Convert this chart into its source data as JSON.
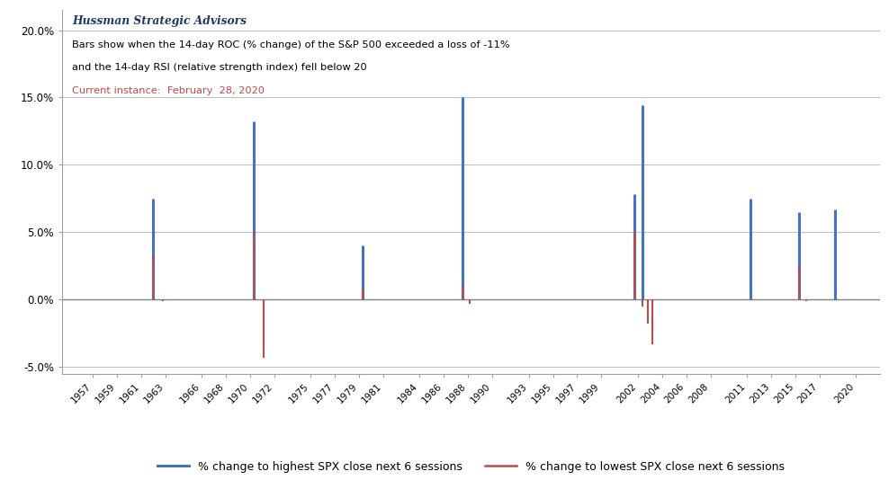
{
  "title_line1": "Hussman Strategic Advisors",
  "title_line2": "Bars show when the 14-day ROC (% change) of the S&P 500 exceeded a loss of -11%",
  "title_line3": "and the 14-day RSI (relative strength index) fell below 20",
  "title_line4": "Current instance:  February  28, 2020",
  "ylim_bottom": -5.5,
  "ylim_top": 21.5,
  "yticks": [
    -5.0,
    0.0,
    5.0,
    10.0,
    15.0,
    20.0
  ],
  "yticklabels": [
    "-5.0%",
    "0.0%",
    "5.0%",
    "10.0%",
    "15.0%",
    "20.0%"
  ],
  "xlim_left": 1954.5,
  "xlim_right": 2022.0,
  "xtick_years": [
    1957,
    1959,
    1961,
    1963,
    1966,
    1968,
    1970,
    1972,
    1975,
    1977,
    1979,
    1981,
    1984,
    1986,
    1988,
    1990,
    1993,
    1995,
    1997,
    1999,
    2002,
    2004,
    2006,
    2008,
    2011,
    2013,
    2015,
    2017,
    2020
  ],
  "blue_color": "#4472C4",
  "red_color": "#BE4B48",
  "background_color": "#FFFFFF",
  "grid_color": "#BFBFBF",
  "legend_blue": "% change to highest SPX close next 6 sessions",
  "legend_red": "% change to lowest SPX close next 6 sessions",
  "events": [
    {
      "x": 1962.0,
      "blue": 7.5,
      "red": 3.3
    },
    {
      "x": 1962.8,
      "blue": 0.0,
      "red": -0.1
    },
    {
      "x": 1970.3,
      "blue": 13.2,
      "red": 5.0
    },
    {
      "x": 1971.1,
      "blue": 0.0,
      "red": -4.35
    },
    {
      "x": 1979.3,
      "blue": 4.0,
      "red": 0.8
    },
    {
      "x": 1987.5,
      "blue": 15.0,
      "red": 1.0
    },
    {
      "x": 1988.1,
      "blue": 0.0,
      "red": -0.3
    },
    {
      "x": 2001.7,
      "blue": 7.8,
      "red": 5.0
    },
    {
      "x": 2002.4,
      "blue": 14.4,
      "red": -0.5
    },
    {
      "x": 2002.8,
      "blue": 0.0,
      "red": -1.8
    },
    {
      "x": 2003.2,
      "blue": 0.0,
      "red": -3.3
    },
    {
      "x": 2011.3,
      "blue": 7.5,
      "red": 0.0
    },
    {
      "x": 2015.3,
      "blue": 6.5,
      "red": 2.5
    },
    {
      "x": 2015.9,
      "blue": 0.0,
      "red": -0.15
    },
    {
      "x": 2018.3,
      "blue": 6.7,
      "red": 0.0
    },
    {
      "x": 2020.0,
      "blue": 0.0,
      "red": 0.0
    }
  ],
  "fig_width": 9.88,
  "fig_height": 5.54,
  "dpi": 100
}
